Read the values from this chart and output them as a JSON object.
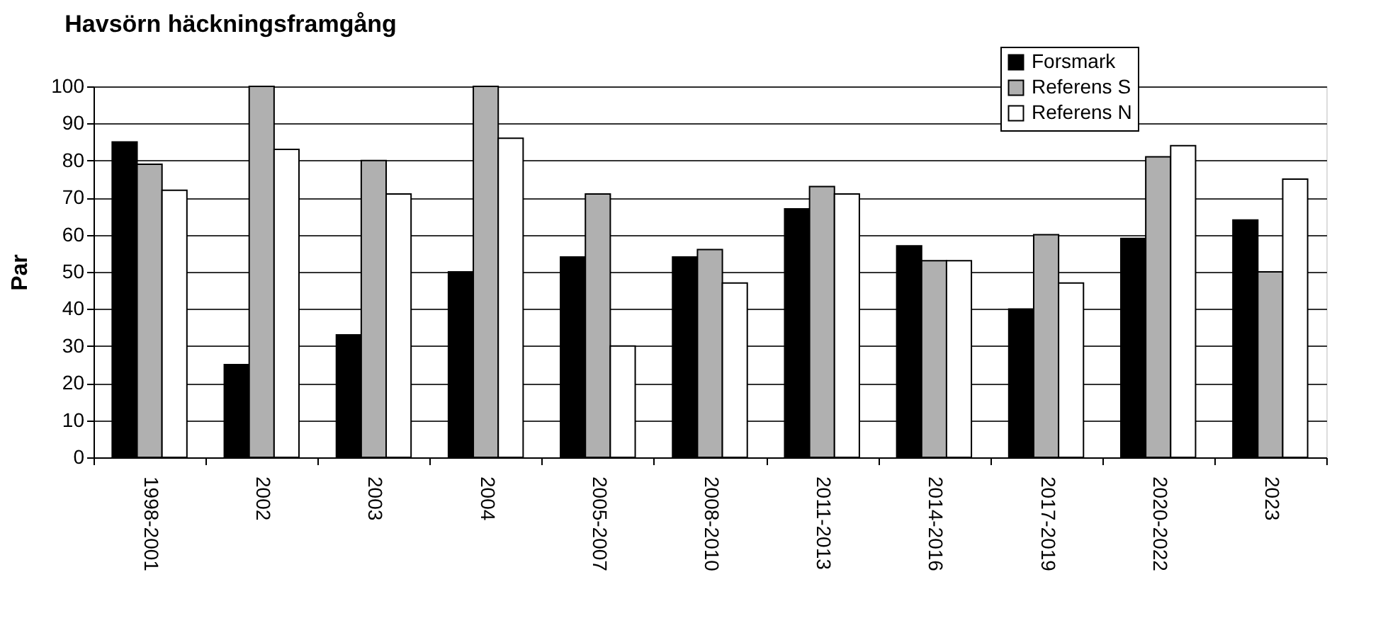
{
  "chart_data": {
    "type": "bar",
    "title": "Havsörn häckningsframgång",
    "ylabel": "Par",
    "categories": [
      "1998-2001",
      "2002",
      "2003",
      "2004",
      "2005-2007",
      "2008-2010",
      "2011-2013",
      "2014-2016",
      "2017-2019",
      "2020-2022",
      "2023"
    ],
    "series": [
      {
        "name": "Forsmark",
        "color": "#000000",
        "values": [
          85,
          25,
          33,
          50,
          54,
          54,
          67,
          57,
          40,
          59,
          64
        ]
      },
      {
        "name": "Referens S",
        "color": "#b0b0b0",
        "values": [
          79,
          100,
          80,
          100,
          71,
          56,
          73,
          53,
          60,
          81,
          50
        ]
      },
      {
        "name": "Referens N",
        "color": "#ffffff",
        "values": [
          72,
          83,
          71,
          86,
          30,
          47,
          71,
          53,
          47,
          84,
          75
        ]
      }
    ],
    "ylim": [
      0,
      100
    ],
    "yticks": [
      0,
      10,
      20,
      30,
      40,
      50,
      60,
      70,
      80,
      90,
      100
    ],
    "grid": "y",
    "legend": "top right"
  }
}
